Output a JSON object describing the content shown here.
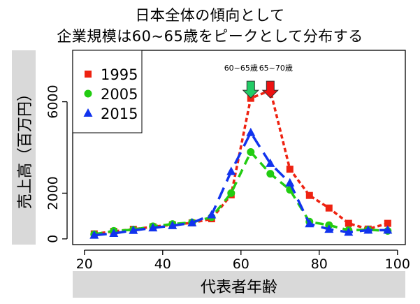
{
  "chart_data": {
    "type": "line",
    "title": "日本全体の傾向として",
    "subtitle": "企業規模は60~65歳をピークとして分布する",
    "xlabel": "代表者年齢",
    "ylabel": "売上高（百万円）",
    "xlim": [
      17,
      102
    ],
    "ylim": [
      -250,
      8250
    ],
    "xticks": [
      20,
      40,
      60,
      80,
      100
    ],
    "yticks": [
      0,
      2000,
      6000
    ],
    "legend_position": "top-left",
    "x": [
      22.5,
      27.5,
      32.5,
      37.5,
      42.5,
      47.5,
      52.5,
      57.5,
      62.5,
      67.5,
      72.5,
      77.5,
      82.5,
      87.5,
      92.5,
      97.5
    ],
    "series": [
      {
        "name": "1995",
        "color": "#ee2211",
        "marker": "square",
        "dash": "6,4",
        "values": [
          220,
          330,
          420,
          530,
          620,
          700,
          880,
          1930,
          6150,
          6500,
          3050,
          1900,
          1350,
          680,
          430,
          680
        ]
      },
      {
        "name": "2005",
        "color": "#22cc11",
        "marker": "circle",
        "dash": "12,8",
        "values": [
          200,
          350,
          400,
          550,
          650,
          720,
          950,
          2000,
          3800,
          2850,
          2150,
          750,
          600,
          380,
          400,
          350
        ]
      },
      {
        "name": "2015",
        "color": "#1133ee",
        "marker": "triangle",
        "dash": "18,10",
        "values": [
          160,
          240,
          370,
          480,
          580,
          700,
          1050,
          2950,
          4650,
          3300,
          2450,
          660,
          420,
          290,
          380,
          380
        ]
      }
    ],
    "annotations": [
      {
        "text": "60~65歳",
        "x": 62.5,
        "y": 6900,
        "arrow_color": "#22cc66"
      },
      {
        "text": "65~70歳",
        "x": 67.5,
        "y": 6900,
        "arrow_color": "#ee1111"
      }
    ]
  }
}
